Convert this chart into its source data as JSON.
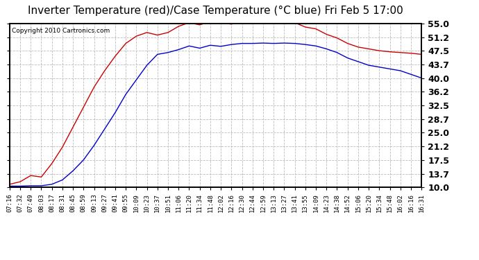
{
  "title": "Inverter Temperature (red)/Case Temperature (°C blue) Fri Feb 5 17:00",
  "copyright": "Copyright 2010 Cartronics.com",
  "y_ticks": [
    10.0,
    13.7,
    17.5,
    21.2,
    25.0,
    28.7,
    32.5,
    36.2,
    40.0,
    43.7,
    47.5,
    51.2,
    55.0
  ],
  "ylim": [
    10.0,
    55.0
  ],
  "x_labels": [
    "07:16",
    "07:32",
    "07:49",
    "08:03",
    "08:17",
    "08:31",
    "08:45",
    "08:59",
    "09:13",
    "09:27",
    "09:41",
    "09:55",
    "10:09",
    "10:23",
    "10:37",
    "10:51",
    "11:06",
    "11:20",
    "11:34",
    "11:48",
    "12:02",
    "12:16",
    "12:30",
    "12:44",
    "12:59",
    "13:13",
    "13:27",
    "13:41",
    "13:55",
    "14:09",
    "14:23",
    "14:38",
    "14:52",
    "15:06",
    "15:20",
    "15:34",
    "15:48",
    "16:02",
    "16:16",
    "16:31"
  ],
  "background_color": "#ffffff",
  "plot_background": "#ffffff",
  "grid_color": "#bbbbbb",
  "title_fontsize": 11,
  "red_line_color": "#cc0000",
  "blue_line_color": "#0000cc",
  "red_vals": [
    10.8,
    11.5,
    13.2,
    12.8,
    16.5,
    21.0,
    26.5,
    32.0,
    37.5,
    42.0,
    46.0,
    49.5,
    51.5,
    52.5,
    51.8,
    52.5,
    54.2,
    55.2,
    54.6,
    55.5,
    55.2,
    54.8,
    55.6,
    55.4,
    55.8,
    55.5,
    55.6,
    55.2,
    54.0,
    53.5,
    52.0,
    51.0,
    49.5,
    48.5,
    48.0,
    47.5,
    47.2,
    47.0,
    46.8,
    46.5
  ],
  "blue_vals": [
    10.3,
    10.3,
    10.4,
    10.4,
    10.8,
    12.0,
    14.5,
    17.5,
    21.5,
    26.0,
    30.5,
    35.5,
    39.5,
    43.5,
    46.5,
    47.0,
    47.8,
    48.8,
    48.2,
    49.0,
    48.7,
    49.2,
    49.5,
    49.5,
    49.6,
    49.5,
    49.6,
    49.5,
    49.2,
    48.8,
    48.0,
    47.0,
    45.5,
    44.5,
    43.5,
    43.0,
    42.5,
    42.0,
    41.0,
    40.0
  ]
}
